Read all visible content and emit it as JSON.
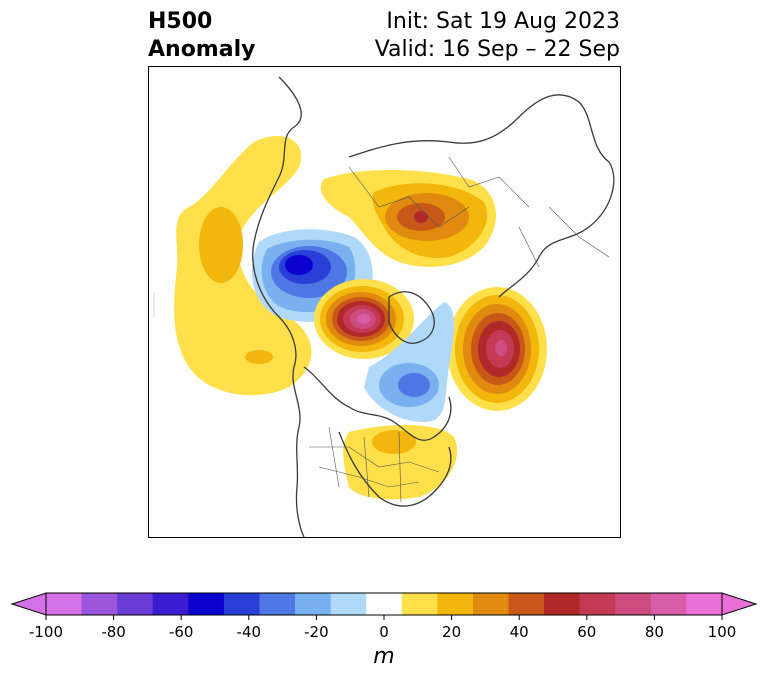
{
  "header": {
    "title_line1": "H500",
    "title_line2": "Anomaly",
    "init": "Init: Sat 19 Aug 2023",
    "valid": "Valid: 16 Sep – 22 Sep"
  },
  "colorbar": {
    "unit": "m",
    "ticks": [
      "-100",
      "-80",
      "-60",
      "-40",
      "-20",
      "0",
      "20",
      "40",
      "60",
      "80",
      "100"
    ],
    "levels": [
      -100,
      -90,
      -80,
      -70,
      -60,
      -50,
      -40,
      -30,
      -20,
      -10,
      10,
      20,
      30,
      40,
      50,
      60,
      70,
      80,
      90,
      100
    ],
    "colors": [
      "#d272e6",
      "#9b55dd",
      "#6a3ad6",
      "#3a1dd3",
      "#0a00cf",
      "#2a3fd8",
      "#4e76e4",
      "#78b0f0",
      "#b0d8f8",
      "#ffffff",
      "#ffe04a",
      "#f2b60c",
      "#e08a10",
      "#c85818",
      "#b02828",
      "#c43a54",
      "#cc4c80",
      "#d85ca8",
      "#e870d6"
    ],
    "under_color": "#d272e6",
    "over_color": "#e870d6"
  },
  "anomalies": [
    {
      "label": "western-ridge",
      "peak": 30,
      "sign": 1
    },
    {
      "label": "canada-trough",
      "peak": -60,
      "sign": -1
    },
    {
      "label": "siberia-ridge",
      "peak": 60,
      "sign": 1
    },
    {
      "label": "arctic-ridge",
      "peak": 90,
      "sign": 1
    },
    {
      "label": "atlantic-ridge",
      "peak": 80,
      "sign": 1
    },
    {
      "label": "greenland-trough",
      "peak": -30,
      "sign": -1
    },
    {
      "label": "us-ridge",
      "peak": 20,
      "sign": 1
    }
  ]
}
